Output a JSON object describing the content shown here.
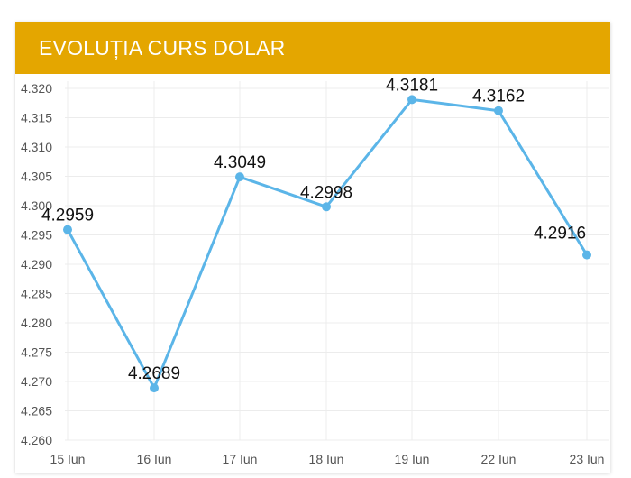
{
  "header": {
    "title": "EVOLUȚIA CURS DOLAR"
  },
  "colors": {
    "header_bg": "#E4A600",
    "line": "#5BB5E8",
    "grid": "#ECECEC"
  },
  "chart_data": {
    "type": "line",
    "title": "EVOLUȚIA CURS DOLAR",
    "categories": [
      "15 Iun",
      "16 Iun",
      "17 Iun",
      "18 Iun",
      "19 Iun",
      "22 Iun",
      "23 Iun"
    ],
    "series": [
      {
        "values": [
          4.2959,
          4.2689,
          4.3049,
          4.2998,
          4.3181,
          4.3162,
          4.2916
        ]
      }
    ],
    "data_labels": [
      "4.2959",
      "4.2689",
      "4.3049",
      "4.2998",
      "4.3181",
      "4.3162",
      "4.2916"
    ],
    "y_ticks": [
      "4.260",
      "4.265",
      "4.270",
      "4.275",
      "4.280",
      "4.285",
      "4.290",
      "4.295",
      "4.300",
      "4.305",
      "4.310",
      "4.315",
      "4.320"
    ],
    "ylim": [
      4.26,
      4.32
    ],
    "xlabel": "",
    "ylabel": "",
    "grid": true,
    "legend": "none"
  }
}
